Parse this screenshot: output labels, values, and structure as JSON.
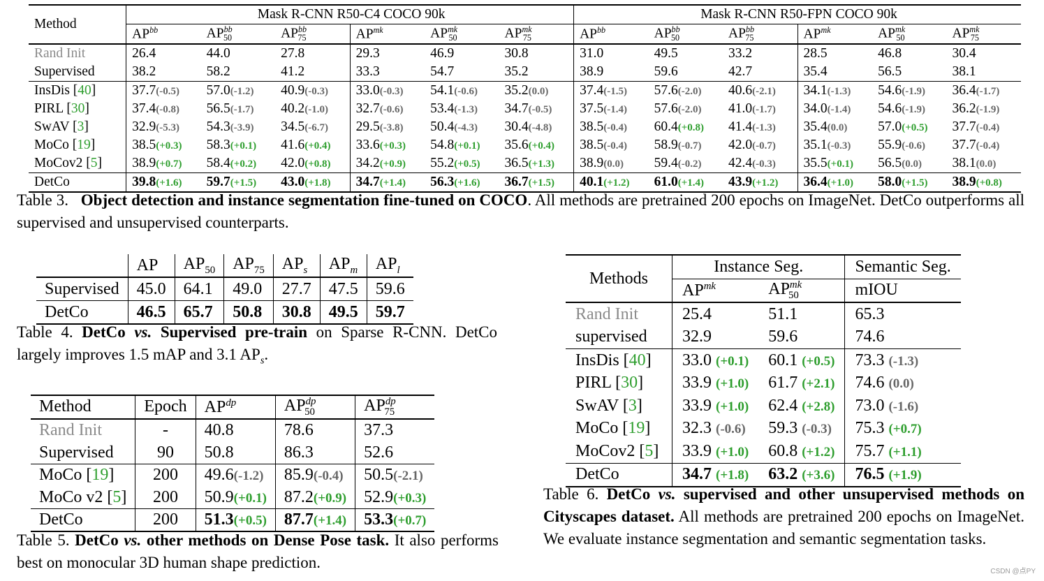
{
  "table3": {
    "method_header": "Method",
    "group1": "Mask R-CNN R50-C4 COCO 90k",
    "group2": "Mask R-CNN R50-FPN COCO 90k",
    "rows": [
      {
        "name": "Rand Init",
        "vals": [
          "26.4",
          "44.0",
          "27.8",
          "29.3",
          "46.9",
          "30.8",
          "31.0",
          "49.5",
          "33.2",
          "28.5",
          "46.8",
          "30.4"
        ]
      },
      {
        "name": "Supervised",
        "vals": [
          "38.2",
          "58.2",
          "41.2",
          "33.3",
          "54.7",
          "35.2",
          "38.9",
          "59.6",
          "42.7",
          "35.4",
          "56.5",
          "38.1"
        ]
      },
      {
        "name": "InsDis",
        "ref": "40",
        "vals": [
          "37.7",
          "57.0",
          "40.9",
          "33.0",
          "54.1",
          "35.2",
          "37.4",
          "57.6",
          "40.6",
          "34.1",
          "54.6",
          "36.4"
        ],
        "deltas": [
          "(-0.5)",
          "(-1.2)",
          "(-0.3)",
          "(-0.3)",
          "(-0.6)",
          "(0.0)",
          "(-1.5)",
          "(-2.0)",
          "(-2.1)",
          "(-1.3)",
          "(-1.9)",
          "(-1.7)"
        ]
      },
      {
        "name": "PIRL",
        "ref": "30",
        "vals": [
          "37.4",
          "56.5",
          "40.2",
          "32.7",
          "53.4",
          "34.7",
          "37.5",
          "57.6",
          "41.0",
          "34.0",
          "54.6",
          "36.2"
        ],
        "deltas": [
          "(-0.8)",
          "(-1.7)",
          "(-1.0)",
          "(-0.6)",
          "(-1.3)",
          "(-0.5)",
          "(-1.4)",
          "(-2.0)",
          "(-1.7)",
          "(-1.4)",
          "(-1.9)",
          "(-1.9)"
        ]
      },
      {
        "name": "SwAV",
        "ref": "3",
        "vals": [
          "32.9",
          "54.3",
          "34.5",
          "29.5",
          "50.4",
          "30.4",
          "38.5",
          "60.4",
          "41.4",
          "35.4",
          "57.0",
          "37.7"
        ],
        "deltas": [
          "(-5.3)",
          "(-3.9)",
          "(-6.7)",
          "(-3.8)",
          "(-4.3)",
          "(-4.8)",
          "(-0.4)",
          "(+0.8)",
          "(-1.3)",
          "(0.0)",
          "(+0.5)",
          "(-0.4)"
        ]
      },
      {
        "name": "MoCo",
        "ref": "19",
        "vals": [
          "38.5",
          "58.3",
          "41.6",
          "33.6",
          "54.8",
          "35.6",
          "38.5",
          "58.9",
          "42.0",
          "35.1",
          "55.9",
          "37.7"
        ],
        "deltas": [
          "(+0.3)",
          "(+0.1)",
          "(+0.4)",
          "(+0.3)",
          "(+0.1)",
          "(+0.4)",
          "(-0.4)",
          "(-0.7)",
          "(-0.7)",
          "(-0.3)",
          "(-0.6)",
          "(-0.4)"
        ]
      },
      {
        "name": "MoCov2",
        "ref": "5",
        "vals": [
          "38.9",
          "58.4",
          "42.0",
          "34.2",
          "55.2",
          "36.5",
          "38.9",
          "59.4",
          "42.4",
          "35.5",
          "56.5",
          "38.1"
        ],
        "deltas": [
          "(+0.7)",
          "(+0.2)",
          "(+0.8)",
          "(+0.9)",
          "(+0.5)",
          "(+1.3)",
          "(0.0)",
          "(-0.2)",
          "(-0.3)",
          "(+0.1)",
          "(0.0)",
          "(0.0)"
        ]
      },
      {
        "name": "DetCo",
        "vals": [
          "39.8",
          "59.7",
          "43.0",
          "34.7",
          "56.3",
          "36.7",
          "40.1",
          "61.0",
          "43.9",
          "36.4",
          "58.0",
          "38.9"
        ],
        "deltas": [
          "(+1.6)",
          "(+1.5)",
          "(+1.8)",
          "(+1.4)",
          "(+1.6)",
          "(+1.5)",
          "(+1.2)",
          "(+1.4)",
          "(+1.2)",
          "(+1.0)",
          "(+1.5)",
          "(+0.8)"
        ]
      }
    ],
    "caption_label": "Table 3.",
    "caption_bold": "Object detection and instance segmentation fine-tuned on COCO",
    "caption_rest": ". All methods are pretrained 200 epochs on ImageNet. DetCo outperforms all supervised and unsupervised counterparts."
  },
  "table4": {
    "rows": [
      {
        "name": "Supervised",
        "vals": [
          "45.0",
          "64.1",
          "49.0",
          "27.7",
          "47.5",
          "59.6"
        ]
      },
      {
        "name": "DetCo",
        "vals": [
          "46.5",
          "65.7",
          "50.8",
          "30.8",
          "49.5",
          "59.7"
        ]
      }
    ],
    "caption_label": "Table 4.",
    "caption_bold1": "DetCo",
    "caption_vs": "vs.",
    "caption_bold2": "Supervised pre-train",
    "caption_rest1": "on Sparse R-CNN. DetCo largely improves 1.5 mAP and 3.1 AP",
    "caption_rest2": "."
  },
  "table5": {
    "headers": [
      "Method",
      "Epoch"
    ],
    "rows": [
      {
        "name": "Rand Init",
        "epoch": "-",
        "vals": [
          "40.8",
          "78.6",
          "37.3"
        ]
      },
      {
        "name": "Supervised",
        "epoch": "90",
        "vals": [
          "50.8",
          "86.3",
          "52.6"
        ]
      },
      {
        "name": "MoCo",
        "ref": "19",
        "epoch": "200",
        "vals": [
          "49.6",
          "85.9",
          "50.5"
        ],
        "deltas": [
          "(-1.2)",
          "(-0.4)",
          "(-2.1)"
        ]
      },
      {
        "name": "MoCo v2",
        "ref": "5",
        "epoch": "200",
        "vals": [
          "50.9",
          "87.2",
          "52.9"
        ],
        "deltas": [
          "(+0.1)",
          "(+0.9)",
          "(+0.3)"
        ]
      },
      {
        "name": "DetCo",
        "epoch": "200",
        "vals": [
          "51.3",
          "87.7",
          "53.3"
        ],
        "deltas": [
          "(+0.5)",
          "(+1.4)",
          "(+0.7)"
        ]
      }
    ],
    "caption_label": "Table 5.",
    "caption_bold1": "DetCo",
    "caption_vs": "vs.",
    "caption_bold2": "other methods on Dense Pose task.",
    "caption_rest": "It also performs best on monocular 3D human shape prediction."
  },
  "table6": {
    "methods_header": "Methods",
    "group1": "Instance Seg.",
    "group2": "Semantic Seg.",
    "miou": "mIOU",
    "rows": [
      {
        "name": "Rand Init",
        "vals": [
          "25.4",
          "51.1",
          "65.3"
        ]
      },
      {
        "name": "supervised",
        "vals": [
          "32.9",
          "59.6",
          "74.6"
        ]
      },
      {
        "name": "InsDis",
        "ref": "40",
        "vals": [
          "33.0",
          "60.1",
          "73.3"
        ],
        "deltas": [
          "(+0.1)",
          "(+0.5)",
          "(-1.3)"
        ]
      },
      {
        "name": "PIRL",
        "ref": "30",
        "vals": [
          "33.9",
          "61.7",
          "74.6"
        ],
        "deltas": [
          "(+1.0)",
          "(+2.1)",
          "(0.0)"
        ]
      },
      {
        "name": "SwAV",
        "ref": "3",
        "vals": [
          "33.9",
          "62.4",
          "73.0"
        ],
        "deltas": [
          "(+1.0)",
          "(+2.8)",
          "(-1.6)"
        ]
      },
      {
        "name": "MoCo",
        "ref": "19",
        "vals": [
          "32.3",
          "59.3",
          "75.3"
        ],
        "deltas": [
          "(-0.6)",
          "(-0.3)",
          "(+0.7)"
        ]
      },
      {
        "name": "MoCov2",
        "ref": "5",
        "vals": [
          "33.9",
          "60.8",
          "75.7"
        ],
        "deltas": [
          "(+1.0)",
          "(+1.2)",
          "(+1.1)"
        ]
      },
      {
        "name": "DetCo",
        "vals": [
          "34.7",
          "63.2",
          "76.5"
        ],
        "deltas": [
          "(+1.8)",
          "(+3.6)",
          "(+1.9)"
        ]
      }
    ],
    "caption_label": "Table 6.",
    "caption_bold1": "DetCo",
    "caption_vs": "vs.",
    "caption_bold2": "supervised and other unsupervised methods on Cityscapes dataset.",
    "caption_rest": "All methods are pretrained 200 epochs on ImageNet. We evaluate instance segmentation and semantic segmentation tasks."
  },
  "watermark": "CSDN @点PY"
}
